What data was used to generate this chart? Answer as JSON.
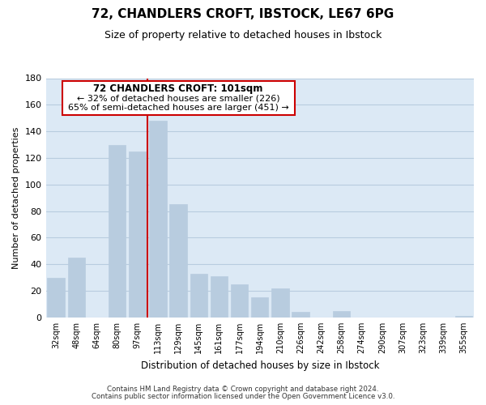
{
  "title": "72, CHANDLERS CROFT, IBSTOCK, LE67 6PG",
  "subtitle": "Size of property relative to detached houses in Ibstock",
  "xlabel": "Distribution of detached houses by size in Ibstock",
  "ylabel": "Number of detached properties",
  "bar_labels": [
    "32sqm",
    "48sqm",
    "64sqm",
    "80sqm",
    "97sqm",
    "113sqm",
    "129sqm",
    "145sqm",
    "161sqm",
    "177sqm",
    "194sqm",
    "210sqm",
    "226sqm",
    "242sqm",
    "258sqm",
    "274sqm",
    "290sqm",
    "307sqm",
    "323sqm",
    "339sqm",
    "355sqm"
  ],
  "bar_values": [
    30,
    45,
    0,
    130,
    125,
    148,
    85,
    33,
    31,
    25,
    15,
    22,
    4,
    0,
    5,
    0,
    0,
    0,
    0,
    0,
    1
  ],
  "red_line_index": 4,
  "bar_color": "#b8ccdf",
  "red_line_color": "#cc0000",
  "annotation_title": "72 CHANDLERS CROFT: 101sqm",
  "annotation_line1": "← 32% of detached houses are smaller (226)",
  "annotation_line2": "65% of semi-detached houses are larger (451) →",
  "annotation_box_color": "#ffffff",
  "annotation_box_edge": "#cc0000",
  "ylim": [
    0,
    180
  ],
  "yticks": [
    0,
    20,
    40,
    60,
    80,
    100,
    120,
    140,
    160,
    180
  ],
  "footer_line1": "Contains HM Land Registry data © Crown copyright and database right 2024.",
  "footer_line2": "Contains public sector information licensed under the Open Government Licence v3.0.",
  "background_color": "#ffffff",
  "axes_bg_color": "#dce9f5",
  "grid_color": "#b8ccdf",
  "title_fontsize": 11,
  "subtitle_fontsize": 9
}
